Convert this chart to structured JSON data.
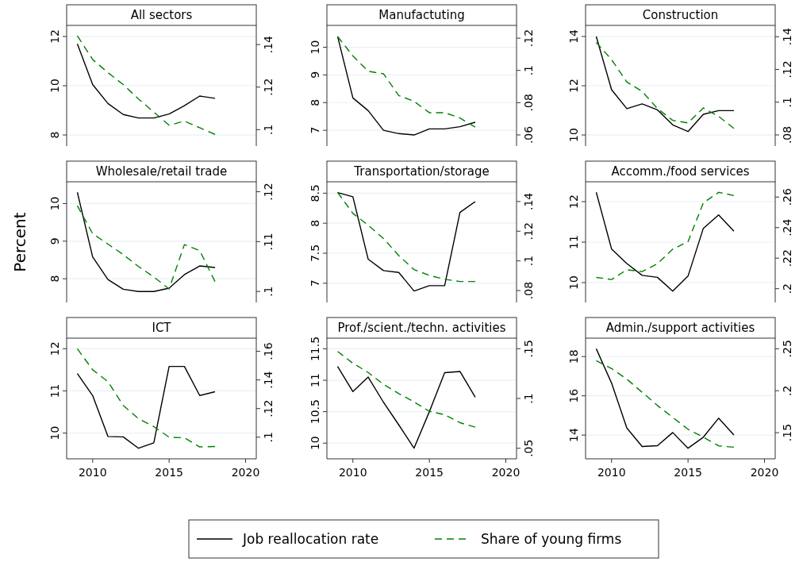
{
  "chart_data": [
    {
      "type": "line",
      "title": "All sectors",
      "x": [
        2009,
        2010,
        2011,
        2012,
        2013,
        2014,
        2015,
        2016,
        2017,
        2018
      ],
      "xlim": [
        2008.3,
        2020.7
      ],
      "xticks": [
        2010,
        2015,
        2020
      ],
      "ylim": [
        7.55,
        12.45
      ],
      "yticks": [
        8,
        10,
        12
      ],
      "y2lim": [
        0.0923,
        0.149
      ],
      "y2ticks": [
        {
          "value": 0.1,
          "label": ".1"
        },
        {
          "value": 0.12,
          "label": ".12"
        },
        {
          "value": 0.14,
          "label": ".14"
        }
      ],
      "grid": "y",
      "tick_labels": "y",
      "legend": "bottom",
      "series": [
        {
          "name": "Job reallocation rate",
          "color": "#000000",
          "line_style": "solid",
          "values": [
            11.7,
            10.05,
            9.28,
            8.83,
            8.69,
            8.69,
            8.85,
            9.19,
            9.58,
            9.49
          ]
        },
        {
          "name": "Share of young firms",
          "color": "#008000",
          "line_style": "dashed",
          "axis": "y2",
          "values": [
            0.1441,
            0.133,
            0.1268,
            0.1212,
            0.1144,
            0.1083,
            0.1021,
            0.104,
            0.1009,
            0.0978
          ]
        }
      ]
    },
    {
      "type": "line",
      "title": "Manufactuting",
      "x": [
        2009,
        2010,
        2011,
        2012,
        2013,
        2014,
        2015,
        2016,
        2017,
        2018
      ],
      "xlim": [
        2008.3,
        2020.7
      ],
      "xticks": [
        2010,
        2015,
        2020
      ],
      "ylim": [
        6.43,
        10.79
      ],
      "yticks": [
        7,
        8,
        9,
        10
      ],
      "y2lim": [
        0.0531,
        0.1279
      ],
      "y2ticks": [
        {
          "value": 0.06,
          "label": ".06"
        },
        {
          "value": 0.08,
          "label": ".08"
        },
        {
          "value": 0.1,
          "label": ".1"
        },
        {
          "value": 0.12,
          "label": ".12"
        }
      ],
      "grid": "y",
      "tick_labels": "y",
      "series": [
        {
          "color": "#000000",
          "line_style": "solid",
          "values": [
            10.39,
            8.17,
            7.71,
            7.0,
            6.88,
            6.83,
            7.05,
            7.05,
            7.13,
            7.29
          ]
        },
        {
          "color": "#008000",
          "line_style": "dashed",
          "axis": "y2",
          "values": [
            0.121,
            0.109,
            0.0995,
            0.0979,
            0.0844,
            0.0808,
            0.0738,
            0.0738,
            0.0705,
            0.0648
          ]
        }
      ]
    },
    {
      "type": "line",
      "title": "Construction",
      "x": [
        2009,
        2010,
        2011,
        2012,
        2013,
        2014,
        2015,
        2016,
        2017,
        2018
      ],
      "xlim": [
        2008.3,
        2020.7
      ],
      "xticks": [
        2010,
        2015,
        2020
      ],
      "ylim": [
        9.55,
        14.45
      ],
      "yticks": [
        10,
        12,
        14
      ],
      "y2lim": [
        0.0732,
        0.1469
      ],
      "y2ticks": [
        {
          "value": 0.08,
          "label": ".08"
        },
        {
          "value": 0.1,
          "label": ".1"
        },
        {
          "value": 0.12,
          "label": ".12"
        },
        {
          "value": 0.14,
          "label": ".14"
        }
      ],
      "grid": "y",
      "tick_labels": "y",
      "series": [
        {
          "color": "#000000",
          "line_style": "solid",
          "values": [
            14.0,
            11.84,
            11.07,
            11.26,
            11.02,
            10.41,
            10.14,
            10.84,
            10.99,
            10.99
          ]
        },
        {
          "color": "#008000",
          "line_style": "dashed",
          "axis": "y2",
          "values": [
            0.1365,
            0.126,
            0.1123,
            0.1066,
            0.0961,
            0.0889,
            0.0873,
            0.0965,
            0.0913,
            0.084
          ]
        }
      ]
    },
    {
      "type": "line",
      "title": "Wholesale/retail trade",
      "ylabel": "Percent",
      "x": [
        2009,
        2010,
        2011,
        2012,
        2013,
        2014,
        2015,
        2016,
        2017,
        2018
      ],
      "xlim": [
        2008.3,
        2020.7
      ],
      "xticks": [
        2010,
        2015,
        2020
      ],
      "ylim": [
        7.37,
        10.58
      ],
      "yticks": [
        8,
        9,
        10
      ],
      "y2lim": [
        0.0978,
        0.122
      ],
      "y2ticks": [
        {
          "value": 0.1,
          "label": ".1"
        },
        {
          "value": 0.11,
          "label": ".11"
        },
        {
          "value": 0.12,
          "label": ".12"
        }
      ],
      "grid": "y",
      "tick_labels": "y",
      "series": [
        {
          "color": "#000000",
          "line_style": "solid",
          "values": [
            10.3,
            8.58,
            7.98,
            7.72,
            7.66,
            7.66,
            7.75,
            8.11,
            8.34,
            8.3
          ]
        },
        {
          "color": "#008000",
          "line_style": "dashed",
          "axis": "y2",
          "values": [
            0.1172,
            0.1116,
            0.1095,
            0.1074,
            0.105,
            0.1029,
            0.1005,
            0.1094,
            0.1082,
            0.102
          ]
        }
      ]
    },
    {
      "type": "line",
      "title": "Transportation/storage",
      "x": [
        2009,
        2010,
        2011,
        2012,
        2013,
        2014,
        2015,
        2016,
        2017,
        2018
      ],
      "xlim": [
        2008.3,
        2020.7
      ],
      "xticks": [
        2010,
        2015,
        2020
      ],
      "ylim": [
        6.68,
        8.69
      ],
      "yticks": [
        7,
        7.5,
        8,
        8.5
      ],
      "y2lim": [
        0.072,
        0.1533
      ],
      "y2ticks": [
        {
          "value": 0.08,
          "label": ".08"
        },
        {
          "value": 0.1,
          "label": ".1"
        },
        {
          "value": 0.12,
          "label": ".12"
        },
        {
          "value": 0.14,
          "label": ".14"
        }
      ],
      "grid": "y",
      "tick_labels": "y",
      "series": [
        {
          "color": "#000000",
          "line_style": "solid",
          "values": [
            8.51,
            8.44,
            7.4,
            7.21,
            7.18,
            6.87,
            6.96,
            6.96,
            8.18,
            8.36
          ]
        },
        {
          "color": "#008000",
          "line_style": "dashed",
          "axis": "y2",
          "values": [
            0.1462,
            0.132,
            0.124,
            0.1151,
            0.1036,
            0.0941,
            0.0902,
            0.0876,
            0.0861,
            0.0861
          ]
        }
      ]
    },
    {
      "type": "line",
      "title": "Accomm./food services",
      "x": [
        2009,
        2010,
        2011,
        2012,
        2013,
        2014,
        2015,
        2016,
        2017,
        2018
      ],
      "xlim": [
        2008.3,
        2020.7
      ],
      "xticks": [
        2010,
        2015,
        2020
      ],
      "ylim": [
        9.51,
        12.49
      ],
      "yticks": [
        10,
        11,
        12
      ],
      "y2lim": [
        0.191,
        0.27
      ],
      "y2ticks": [
        {
          "value": 0.2,
          "label": ".2"
        },
        {
          "value": 0.22,
          "label": ".22"
        },
        {
          "value": 0.24,
          "label": ".24"
        },
        {
          "value": 0.26,
          "label": ".26"
        }
      ],
      "grid": "y",
      "tick_labels": "y",
      "series": [
        {
          "color": "#000000",
          "line_style": "solid",
          "values": [
            12.23,
            10.83,
            10.47,
            10.18,
            10.13,
            9.79,
            10.16,
            11.34,
            11.67,
            11.27
          ]
        },
        {
          "color": "#008000",
          "line_style": "dashed",
          "axis": "y2",
          "values": [
            0.2074,
            0.206,
            0.2124,
            0.2112,
            0.2164,
            0.2259,
            0.2308,
            0.2562,
            0.2631,
            0.261
          ]
        }
      ]
    },
    {
      "type": "line",
      "title": "ICT",
      "x": [
        2009,
        2010,
        2011,
        2012,
        2013,
        2014,
        2015,
        2016,
        2017,
        2018
      ],
      "xlim": [
        2008.3,
        2020.7
      ],
      "xticks": [
        2010,
        2015,
        2020
      ],
      "ylim": [
        9.39,
        12.25
      ],
      "yticks": [
        10,
        11,
        12
      ],
      "y2lim": [
        0.0849,
        0.1692
      ],
      "y2ticks": [
        {
          "value": 0.1,
          "label": ".1"
        },
        {
          "value": 0.12,
          "label": ".12"
        },
        {
          "value": 0.14,
          "label": ".14"
        },
        {
          "value": 0.16,
          "label": ".16"
        }
      ],
      "grid": "y",
      "series": [
        {
          "color": "#000000",
          "line_style": "solid",
          "values": [
            11.41,
            10.89,
            9.92,
            9.91,
            9.64,
            9.77,
            11.58,
            11.58,
            10.89,
            10.98
          ]
        },
        {
          "color": "#008000",
          "line_style": "dashed",
          "axis": "y2",
          "values": [
            0.1618,
            0.1471,
            0.1388,
            0.1222,
            0.1129,
            0.1074,
            0.1,
            0.0996,
            0.0932,
            0.0935
          ]
        }
      ]
    },
    {
      "type": "line",
      "title": "Prof./scient./techn. activities",
      "x": [
        2009,
        2010,
        2011,
        2012,
        2013,
        2014,
        2015,
        2016,
        2017,
        2018
      ],
      "xlim": [
        2008.3,
        2020.7
      ],
      "xticks": [
        2010,
        2015,
        2020
      ],
      "ylim": [
        9.75,
        11.67
      ],
      "yticks": [
        10,
        10.5,
        11,
        11.5
      ],
      "y2lim": [
        0.0394,
        0.1606
      ],
      "y2ticks": [
        {
          "value": 0.05,
          "label": ".05"
        },
        {
          "value": 0.1,
          "label": ".1"
        },
        {
          "value": 0.15,
          "label": ".15"
        }
      ],
      "grid": "y",
      "series": [
        {
          "color": "#000000",
          "line_style": "solid",
          "values": [
            11.22,
            10.82,
            11.05,
            10.65,
            10.29,
            9.92,
            10.5,
            11.12,
            11.14,
            10.73
          ]
        },
        {
          "color": "#008000",
          "line_style": "dashed",
          "axis": "y2",
          "values": [
            0.1473,
            0.1354,
            0.1261,
            0.1142,
            0.1049,
            0.0965,
            0.0871,
            0.0837,
            0.0757,
            0.0712
          ]
        }
      ]
    },
    {
      "type": "line",
      "title": "Admin./support activities",
      "x": [
        2009,
        2010,
        2011,
        2012,
        2013,
        2014,
        2015,
        2016,
        2017,
        2018
      ],
      "xlim": [
        2008.3,
        2020.7
      ],
      "xticks": [
        2010,
        2015,
        2020
      ],
      "ylim": [
        12.79,
        18.94
      ],
      "yticks": [
        14,
        16,
        18
      ],
      "y2lim": [
        0.1189,
        0.2626
      ],
      "y2ticks": [
        {
          "value": 0.15,
          "label": ".15"
        },
        {
          "value": 0.2,
          "label": ".2"
        },
        {
          "value": 0.25,
          "label": ".25"
        }
      ],
      "grid": "y",
      "series": [
        {
          "color": "#000000",
          "line_style": "solid",
          "values": [
            18.4,
            16.65,
            14.36,
            13.42,
            13.46,
            14.13,
            13.33,
            13.89,
            14.86,
            14.0
          ]
        },
        {
          "color": "#008000",
          "line_style": "dashed",
          "axis": "y2",
          "values": [
            0.2358,
            0.2264,
            0.2138,
            0.1981,
            0.1824,
            0.1682,
            0.1541,
            0.1447,
            0.1343,
            0.1327
          ]
        }
      ]
    }
  ]
}
